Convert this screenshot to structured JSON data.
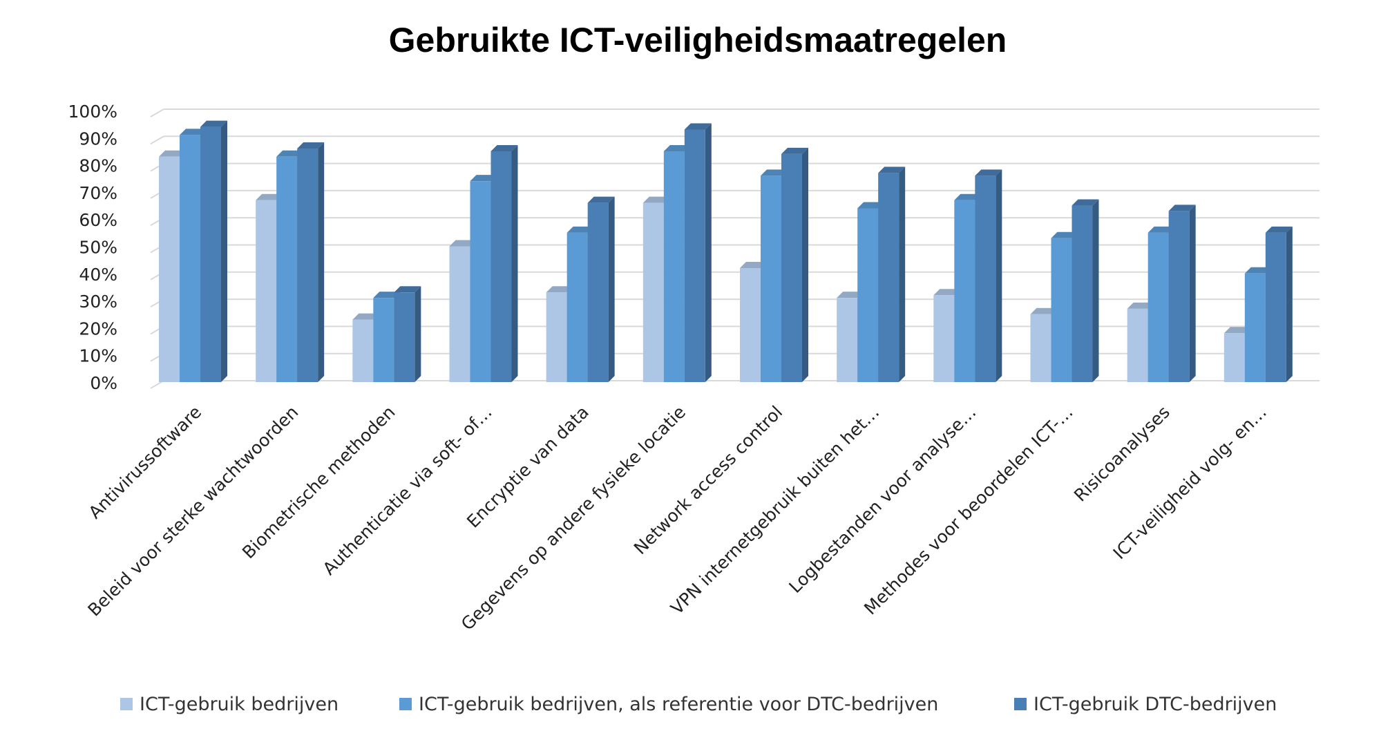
{
  "chart_data": {
    "type": "bar",
    "title": "Gebruikte ICT-veiligheidsmaatregelen",
    "xlabel": "",
    "ylabel": "",
    "ylim": [
      0,
      100
    ],
    "y_ticks": [
      "0%",
      "10%",
      "20%",
      "30%",
      "40%",
      "50%",
      "60%",
      "70%",
      "80%",
      "90%",
      "100%"
    ],
    "grid": true,
    "legend_position": "bottom",
    "categories": [
      "Antivirussoftware",
      "Beleid voor sterke wachtwoorden",
      "Biometrische methoden",
      "Authenticatie via soft- of…",
      "Encryptie van data",
      "Gegevens op andere fysieke locatie",
      "Network access control",
      "VPN internetgebruik buiten het…",
      "Logbestanden voor analyse…",
      "Methodes voor beoordelen ICT-…",
      "Risicoanalyses",
      "ICT-veiligheid volg- en…"
    ],
    "series": [
      {
        "name": "ICT-gebruik bedrijven",
        "color": "#adc6e5",
        "values": [
          83,
          67,
          23,
          50,
          33,
          66,
          42,
          31,
          32,
          25,
          27,
          18
        ]
      },
      {
        "name": "ICT-gebruik bedrijven, als referentie voor DTC-bedrijven",
        "color": "#5b9bd5",
        "values": [
          91,
          83,
          31,
          74,
          55,
          85,
          76,
          64,
          67,
          53,
          55,
          40
        ]
      },
      {
        "name": "ICT-gebruik DTC-bedrijven",
        "color": "#4a7fb5",
        "values": [
          94,
          86,
          33,
          85,
          66,
          93,
          84,
          77,
          76,
          65,
          63,
          55
        ]
      }
    ]
  }
}
